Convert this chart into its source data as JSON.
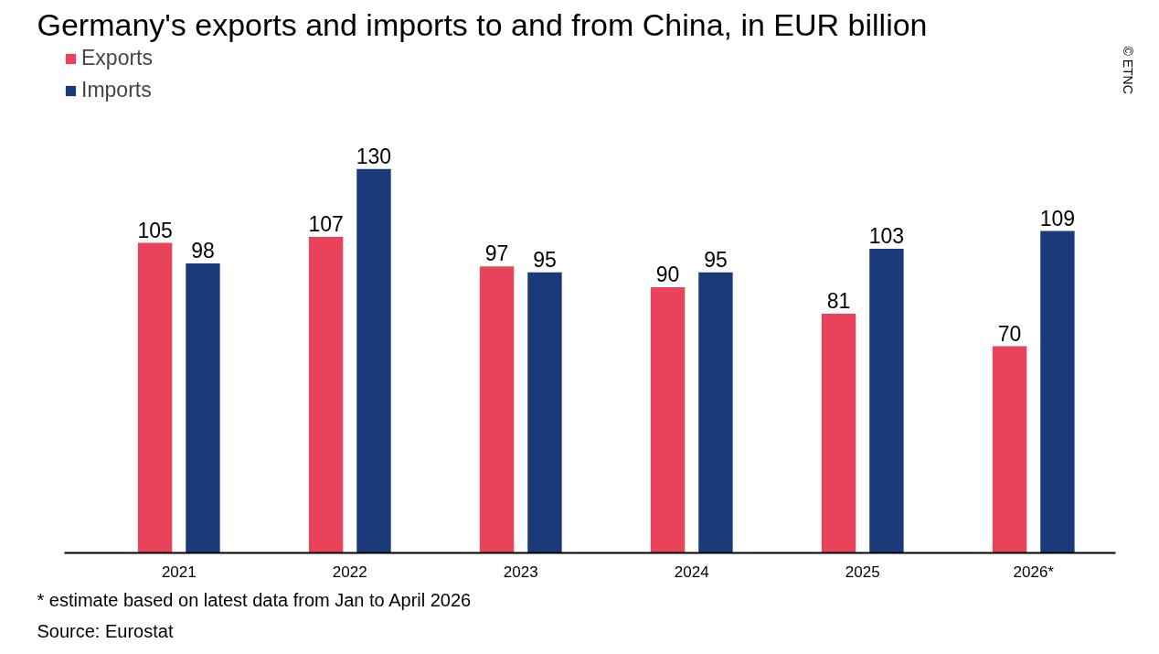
{
  "chart_data": {
    "type": "bar",
    "title": "Germany's exports and imports to and from China, in EUR billion",
    "categories": [
      "2021",
      "2022",
      "2023",
      "2024",
      "2025",
      "2026*"
    ],
    "series": [
      {
        "name": "Exports",
        "color": "#e8435a",
        "values": [
          105,
          107,
          97,
          90,
          81,
          70
        ]
      },
      {
        "name": "Imports",
        "color": "#1b3a7a",
        "values": [
          98,
          130,
          95,
          95,
          103,
          109
        ]
      }
    ],
    "data_labels": true,
    "legend": "top left",
    "grid": false,
    "tick_labels": "x",
    "annotations": [
      "* estimate based on latest data from Jan to April 2026",
      "Source: Eurostat",
      "© ETNC"
    ]
  }
}
